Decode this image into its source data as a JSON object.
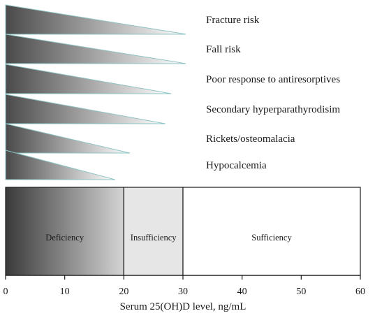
{
  "risks": [
    {
      "label": "Fracture risk",
      "threshold": 30.5
    },
    {
      "label": "Fall risk",
      "threshold": 30.5
    },
    {
      "label": "Poor response to antiresorptives",
      "threshold": 28
    },
    {
      "label": "Secondary hyperparathyrodisim",
      "threshold": 27
    },
    {
      "label": "Rickets/osteomalacia",
      "threshold": 21
    },
    {
      "label": "Hypocalcemia",
      "threshold": 18.5
    }
  ],
  "zones": [
    {
      "label": "Deficiency",
      "from": 0,
      "to": 20
    },
    {
      "label": "Insufficiency",
      "from": 20,
      "to": 30
    },
    {
      "label": "Sufficiency",
      "from": 30,
      "to": 60
    }
  ],
  "axis": {
    "title": "Serum 25(OH)D level, ng/mL",
    "min": 0,
    "max": 60,
    "ticks": [
      "0",
      "10",
      "20",
      "30",
      "40",
      "50",
      "60"
    ]
  },
  "colors": {
    "wedge_dark": "#4a4a4a",
    "wedge_light": "#ffffff",
    "wedge_edge": "#8fc4c4",
    "deficiency_dark": "#3a3a3a",
    "deficiency_light": "#d4d4d4",
    "insufficiency": "#e6e6e6",
    "sufficiency": "#ffffff"
  }
}
